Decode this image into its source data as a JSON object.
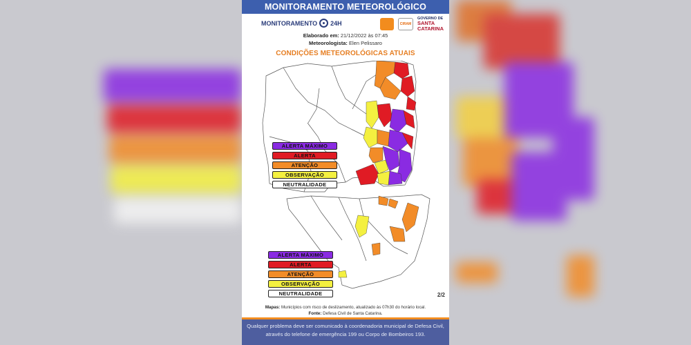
{
  "header": {
    "title": "MONITORAMENTO METEOROLÓGICO",
    "monitor_logo_text": "MONITORAMENTO",
    "monitor_logo_suffix": "24H",
    "sc_logo_line1": "GOVERNO DE",
    "sc_logo_line2": "SANTA",
    "sc_logo_line3": "CATARINA",
    "ciram_text": "CIRAM"
  },
  "meta": {
    "elaborado_label": "Elaborado em:",
    "elaborado_value": "21/12/2022 às 07:45",
    "meteorologista_label": "Meteorologista:",
    "meteorologista_value": "Elen Pelissaro"
  },
  "section_title": "CONDIÇÕES METEOROLÓGICAS ATUAIS",
  "legend": {
    "items": [
      "ALERTA MÁXIMO",
      "ALERTA",
      "ATENÇÃO",
      "OBSERVAÇÃO",
      "NEUTRALIDADE"
    ]
  },
  "page_indicator": "2/2",
  "sources": {
    "mapas_label": "Mapas:",
    "mapas_text": "Municípios com risco de deslizamento, atualizado às 07h30 do horário local.",
    "fonte_label": "Fonte:",
    "fonte_text": "Defesa Civil de Santa Catarina."
  },
  "footer": {
    "line1": "Qualquer problema deve ser comunicado à coordenadoria municipal de Defesa Civil,",
    "line2": "através do telefone de emergência 199 ou Corpo de Bombeiros 193."
  },
  "colors": {
    "alerta_maximo": "#8a2be2",
    "alerta": "#e01b24",
    "atencao": "#f28c28",
    "observacao": "#f4f040",
    "neutralidade": "#ffffff",
    "banner": "#3d5fae",
    "title_accent": "#e67e22"
  }
}
